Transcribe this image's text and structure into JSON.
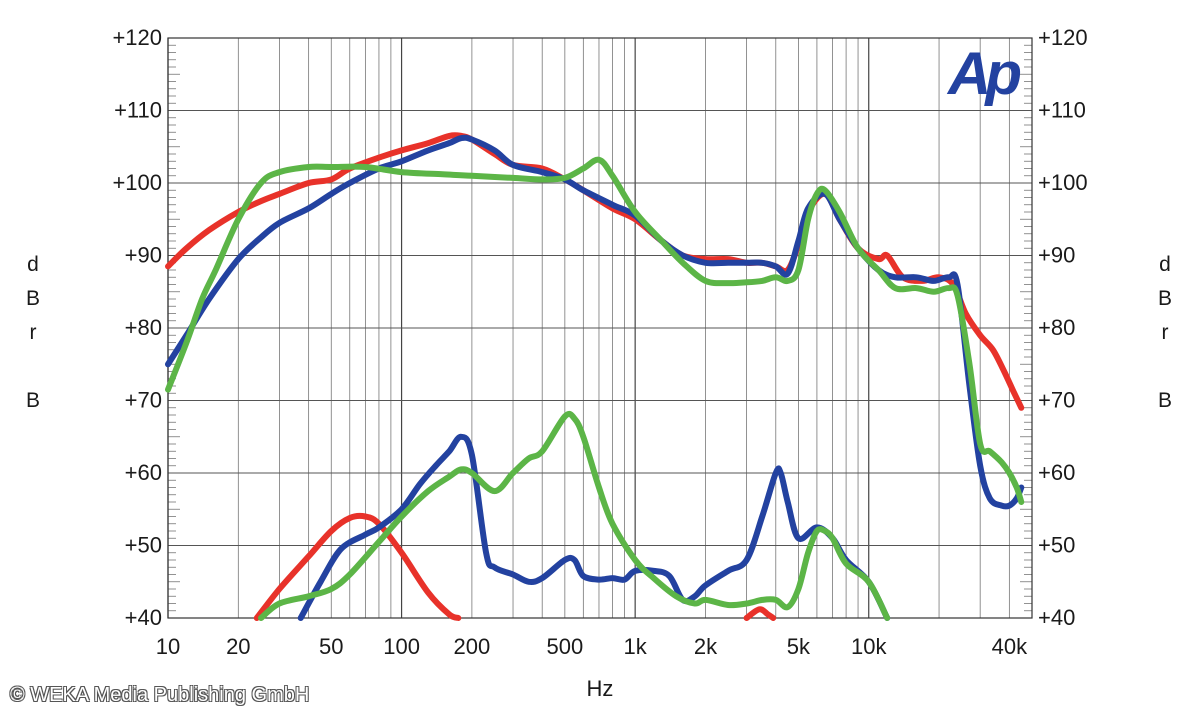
{
  "chart_data": {
    "type": "line",
    "xscale": "log",
    "xlim": [
      10,
      50000
    ],
    "ylim": [
      40,
      120
    ],
    "xlabel": "Hz",
    "ylabel": "dBr\n\nB",
    "grid": true,
    "x_ticks": [
      {
        "value": 10,
        "label": "10"
      },
      {
        "value": 20,
        "label": "20"
      },
      {
        "value": 50,
        "label": "50"
      },
      {
        "value": 100,
        "label": "100"
      },
      {
        "value": 200,
        "label": "200"
      },
      {
        "value": 500,
        "label": "500"
      },
      {
        "value": 1000,
        "label": "1k"
      },
      {
        "value": 2000,
        "label": "2k"
      },
      {
        "value": 5000,
        "label": "5k"
      },
      {
        "value": 10000,
        "label": "10k"
      },
      {
        "value": 40000,
        "label": "40k"
      }
    ],
    "y_ticks": [
      {
        "value": 120,
        "label": "+120"
      },
      {
        "value": 110,
        "label": "+110"
      },
      {
        "value": 100,
        "label": "+100"
      },
      {
        "value": 90,
        "label": "+90"
      },
      {
        "value": 80,
        "label": "+80"
      },
      {
        "value": 70,
        "label": "+70"
      },
      {
        "value": 60,
        "label": "+60"
      },
      {
        "value": 50,
        "label": "+50"
      },
      {
        "value": 40,
        "label": "+40"
      }
    ],
    "series": [
      {
        "color": "#e8322a",
        "points": [
          [
            10,
            88.5
          ],
          [
            12,
            91
          ],
          [
            15,
            93.5
          ],
          [
            20,
            96
          ],
          [
            25,
            97.5
          ],
          [
            30,
            98.5
          ],
          [
            40,
            100
          ],
          [
            50,
            100.5
          ],
          [
            60,
            102
          ],
          [
            80,
            103.5
          ],
          [
            100,
            104.5
          ],
          [
            130,
            105.5
          ],
          [
            160,
            106.5
          ],
          [
            180,
            106.5
          ],
          [
            200,
            106
          ],
          [
            250,
            104
          ],
          [
            300,
            102.5
          ],
          [
            400,
            102
          ],
          [
            500,
            100.5
          ],
          [
            600,
            99
          ],
          [
            800,
            96.5
          ],
          [
            1000,
            95
          ],
          [
            1300,
            92
          ],
          [
            1600,
            90
          ],
          [
            2000,
            89.5
          ],
          [
            2500,
            89.5
          ],
          [
            3000,
            89
          ],
          [
            3500,
            89
          ],
          [
            4000,
            88.5
          ],
          [
            4500,
            88
          ],
          [
            5000,
            91.5
          ],
          [
            5500,
            96
          ],
          [
            6500,
            98.5
          ],
          [
            7500,
            95
          ],
          [
            9000,
            91
          ],
          [
            11000,
            89.5
          ],
          [
            12000,
            90
          ],
          [
            14000,
            87
          ],
          [
            17000,
            86.5
          ],
          [
            20000,
            87
          ],
          [
            23000,
            86
          ],
          [
            26000,
            82
          ],
          [
            30000,
            79
          ],
          [
            34000,
            77
          ],
          [
            38000,
            74
          ],
          [
            42000,
            71
          ],
          [
            45000,
            69
          ]
        ]
      },
      {
        "color": "#2342a0",
        "points": [
          [
            10,
            75
          ],
          [
            12,
            79
          ],
          [
            15,
            84
          ],
          [
            20,
            89.5
          ],
          [
            25,
            92.5
          ],
          [
            30,
            94.5
          ],
          [
            40,
            96.5
          ],
          [
            50,
            98.5
          ],
          [
            60,
            100
          ],
          [
            80,
            102
          ],
          [
            100,
            103
          ],
          [
            130,
            104.5
          ],
          [
            160,
            105.5
          ],
          [
            180,
            106.2
          ],
          [
            200,
            106
          ],
          [
            250,
            104.5
          ],
          [
            300,
            102.5
          ],
          [
            400,
            101.5
          ],
          [
            500,
            100.5
          ],
          [
            600,
            99
          ],
          [
            800,
            97
          ],
          [
            1000,
            95.5
          ],
          [
            1300,
            92
          ],
          [
            1600,
            90
          ],
          [
            2000,
            89
          ],
          [
            2500,
            89
          ],
          [
            3000,
            89
          ],
          [
            3500,
            89
          ],
          [
            4000,
            88.5
          ],
          [
            4500,
            87.5
          ],
          [
            5000,
            92
          ],
          [
            5500,
            96.5
          ],
          [
            6500,
            98.5
          ],
          [
            7500,
            95
          ],
          [
            9000,
            91
          ],
          [
            11000,
            88
          ],
          [
            13000,
            87
          ],
          [
            16000,
            87
          ],
          [
            19000,
            86.5
          ],
          [
            22000,
            87
          ],
          [
            24000,
            86
          ],
          [
            27000,
            72
          ],
          [
            30000,
            61
          ],
          [
            33000,
            56.5
          ],
          [
            37000,
            55.5
          ],
          [
            40000,
            55.5
          ],
          [
            43000,
            56.5
          ],
          [
            45000,
            58
          ]
        ]
      },
      {
        "color": "#5cb547",
        "points": [
          [
            10,
            71.5
          ],
          [
            12,
            78
          ],
          [
            14,
            84
          ],
          [
            16,
            88
          ],
          [
            20,
            95
          ],
          [
            25,
            100
          ],
          [
            30,
            101.5
          ],
          [
            40,
            102.2
          ],
          [
            50,
            102.2
          ],
          [
            70,
            102.2
          ],
          [
            100,
            101.5
          ],
          [
            150,
            101.2
          ],
          [
            200,
            101
          ],
          [
            300,
            100.7
          ],
          [
            400,
            100.5
          ],
          [
            500,
            100.7
          ],
          [
            600,
            102
          ],
          [
            700,
            103.2
          ],
          [
            800,
            101
          ],
          [
            1000,
            96
          ],
          [
            1300,
            92
          ],
          [
            1600,
            89
          ],
          [
            2000,
            86.5
          ],
          [
            2500,
            86.2
          ],
          [
            3000,
            86.3
          ],
          [
            3500,
            86.5
          ],
          [
            4000,
            87
          ],
          [
            4500,
            86.5
          ],
          [
            5000,
            88
          ],
          [
            5500,
            95
          ],
          [
            6000,
            98.5
          ],
          [
            6500,
            99
          ],
          [
            7500,
            96
          ],
          [
            9000,
            91
          ],
          [
            11000,
            88
          ],
          [
            13000,
            85.5
          ],
          [
            16000,
            85.5
          ],
          [
            19000,
            85
          ],
          [
            22000,
            85.5
          ],
          [
            24000,
            84.5
          ],
          [
            27000,
            75
          ],
          [
            30000,
            64
          ],
          [
            33000,
            63
          ],
          [
            37000,
            61.5
          ],
          [
            40000,
            60
          ],
          [
            43000,
            58
          ],
          [
            45000,
            56
          ]
        ]
      },
      {
        "color": "#e8322a",
        "points": [
          [
            24,
            40
          ],
          [
            30,
            44
          ],
          [
            40,
            48.5
          ],
          [
            50,
            52
          ],
          [
            60,
            53.8
          ],
          [
            70,
            54
          ],
          [
            80,
            53
          ],
          [
            100,
            49
          ],
          [
            130,
            43.5
          ],
          [
            160,
            40.5
          ],
          [
            175,
            40
          ]
        ]
      },
      {
        "color": "#2342a0",
        "points": [
          [
            37,
            40
          ],
          [
            45,
            45
          ],
          [
            55,
            49.5
          ],
          [
            70,
            51.5
          ],
          [
            80,
            52.5
          ],
          [
            100,
            55
          ],
          [
            120,
            58.5
          ],
          [
            140,
            61
          ],
          [
            160,
            63
          ],
          [
            180,
            65
          ],
          [
            200,
            62.5
          ],
          [
            230,
            49
          ],
          [
            250,
            47
          ],
          [
            300,
            46
          ],
          [
            350,
            45
          ],
          [
            400,
            45.5
          ],
          [
            500,
            48
          ],
          [
            550,
            48
          ],
          [
            600,
            45.8
          ],
          [
            700,
            45.3
          ],
          [
            800,
            45.5
          ],
          [
            900,
            45.3
          ],
          [
            1000,
            46.5
          ],
          [
            1200,
            46.5
          ],
          [
            1400,
            45.8
          ],
          [
            1600,
            42.5
          ],
          [
            1800,
            43
          ],
          [
            2000,
            44.5
          ],
          [
            2500,
            46.5
          ],
          [
            3000,
            48
          ],
          [
            3500,
            54
          ],
          [
            4000,
            60
          ],
          [
            4200,
            60
          ],
          [
            4500,
            56
          ],
          [
            5000,
            51
          ],
          [
            6000,
            52.5
          ],
          [
            7000,
            51
          ],
          [
            8000,
            48
          ],
          [
            10000,
            45
          ],
          [
            12000,
            40
          ]
        ]
      },
      {
        "color": "#5cb547",
        "points": [
          [
            25,
            40
          ],
          [
            30,
            42
          ],
          [
            40,
            43
          ],
          [
            50,
            44
          ],
          [
            60,
            46
          ],
          [
            80,
            50.5
          ],
          [
            100,
            54
          ],
          [
            130,
            57.5
          ],
          [
            160,
            59.5
          ],
          [
            180,
            60.5
          ],
          [
            200,
            60
          ],
          [
            250,
            57.5
          ],
          [
            300,
            60
          ],
          [
            350,
            62
          ],
          [
            400,
            63
          ],
          [
            500,
            67.8
          ],
          [
            550,
            67.5
          ],
          [
            600,
            65
          ],
          [
            700,
            58
          ],
          [
            800,
            53
          ],
          [
            1000,
            48
          ],
          [
            1200,
            45.5
          ],
          [
            1500,
            43
          ],
          [
            1800,
            42
          ],
          [
            2000,
            42.5
          ],
          [
            2500,
            41.8
          ],
          [
            3000,
            42
          ],
          [
            3500,
            42.5
          ],
          [
            4000,
            42.5
          ],
          [
            4500,
            41.5
          ],
          [
            5000,
            44
          ],
          [
            5500,
            49
          ],
          [
            6000,
            52
          ],
          [
            6500,
            52
          ],
          [
            7000,
            51
          ],
          [
            8000,
            47.5
          ],
          [
            10000,
            45
          ],
          [
            12000,
            40
          ]
        ]
      },
      {
        "color": "#e8322a",
        "points": [
          [
            3000,
            40
          ],
          [
            3400,
            41.2
          ],
          [
            3700,
            40.5
          ],
          [
            3900,
            40
          ]
        ]
      }
    ]
  },
  "axis": {
    "y_label_left": "d\nB\nr\n\nB",
    "y_label_right": "d\nB\nr\n\nB",
    "x_label": "Hz"
  },
  "logo": {
    "text": "Ap",
    "color": "#2342a0"
  },
  "copyright": "© WEKA Media Publishing GmbH"
}
